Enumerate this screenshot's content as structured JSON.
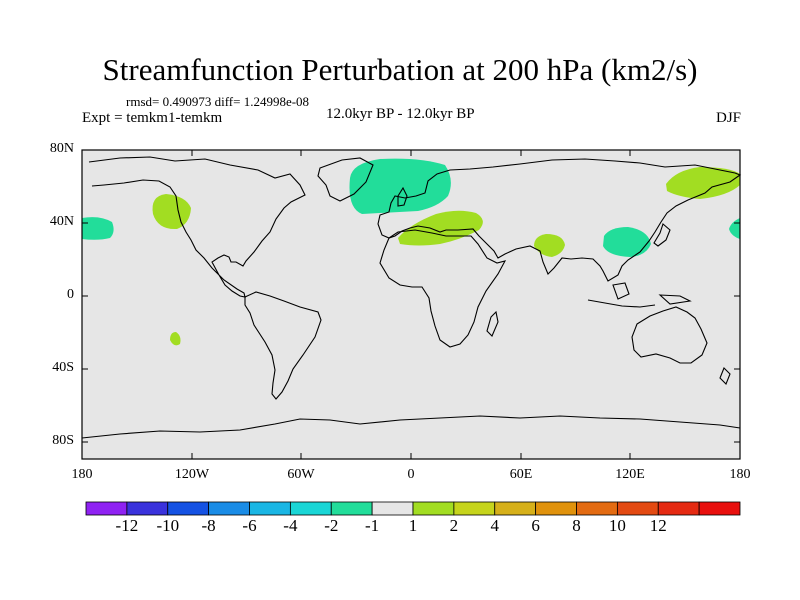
{
  "header": {
    "title": "Streamfunction Perturbation at 200 hPa (km2/s)",
    "stats": "rmsd= 0.490973 diff= 1.24998e-08",
    "experiment": "Expt = temkm1-temkm",
    "period": "12.0kyr BP - 12.0kyr BP",
    "season": "DJF"
  },
  "axes": {
    "y_ticks": [
      "80N",
      "40N",
      "0",
      "40S",
      "80S"
    ],
    "x_ticks": [
      "180",
      "120W",
      "60W",
      "0",
      "60E",
      "120E",
      "180"
    ]
  },
  "colors": {
    "land_ocean_background": "#e6e6e6",
    "coastline": "#000000",
    "positive_1_2": "#a2dd22",
    "negative_1_2": "#22dd9a"
  },
  "legend": {
    "colors": [
      "#8f22f2",
      "#3a32dc",
      "#1552e3",
      "#1a8ce6",
      "#1ab6e4",
      "#1ad6d6",
      "#22dd9a",
      "#e6e6e6",
      "#a2dd22",
      "#c6d41c",
      "#d6b01a",
      "#e0920c",
      "#e36b12",
      "#e34a12",
      "#e52a12",
      "#e8100e"
    ],
    "labels": [
      "-12",
      "-10",
      "-8",
      "-6",
      "-4",
      "-2",
      "-1",
      "1",
      "2",
      "4",
      "6",
      "8",
      "10",
      "12"
    ]
  }
}
